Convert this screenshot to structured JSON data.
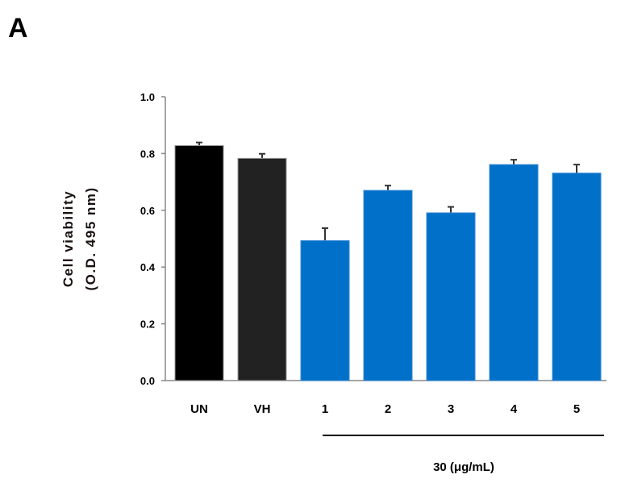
{
  "panel_label": "A",
  "chart_data": {
    "type": "bar",
    "categories": [
      "UN",
      "VH",
      "1",
      "2",
      "3",
      "4",
      "5"
    ],
    "values": [
      0.828,
      0.783,
      0.493,
      0.67,
      0.591,
      0.761,
      0.731
    ],
    "errors": [
      0.011,
      0.016,
      0.044,
      0.017,
      0.021,
      0.017,
      0.03
    ],
    "colors": [
      "#000000",
      "#222222",
      "#0070C8",
      "#0070C8",
      "#0070C8",
      "#0070C8",
      "#0070C8"
    ],
    "ylabel_line1": "Cell viability",
    "ylabel_line2": "(O.D. 495 nm)",
    "ylim": [
      0,
      1.0
    ],
    "yticks": [
      "0.0",
      "0.2",
      "0.4",
      "0.6",
      "0.8",
      "1.0"
    ],
    "group_label": "30  (μg/mL)",
    "grid": false
  }
}
